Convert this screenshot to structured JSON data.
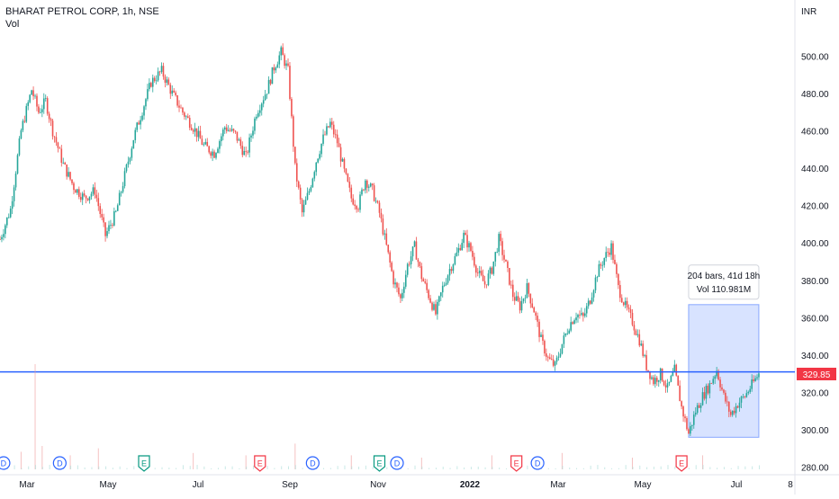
{
  "legend": {
    "symbol_line": "BHARAT PETROL CORP, 1h, NSE",
    "volume_label": "Vol"
  },
  "currency_label": "INR",
  "chart_data": {
    "type": "line",
    "title": "BHARAT PETROL CORP, 1h, NSE",
    "xlabel": "",
    "ylabel": "",
    "ylim": [
      275,
      530
    ],
    "y_ticks": [
      500,
      480,
      460,
      440,
      420,
      400,
      380,
      360,
      340,
      320,
      300,
      280
    ],
    "y_tick_labels": [
      "500.00",
      "480.00",
      "460.00",
      "440.00",
      "420.00",
      "400.00",
      "380.00",
      "360.00",
      "340.00",
      "320.00",
      "300.00",
      "280.00"
    ],
    "x_tick_labels": [
      "Mar",
      "May",
      "Jul",
      "Sep",
      "Nov",
      "2022",
      "Mar",
      "May",
      "Jul",
      "8"
    ],
    "price_path": [
      {
        "t": 0,
        "v": 402
      },
      {
        "t": 3,
        "v": 418
      },
      {
        "t": 6,
        "v": 460
      },
      {
        "t": 9,
        "v": 482
      },
      {
        "t": 11,
        "v": 470
      },
      {
        "t": 13,
        "v": 476
      },
      {
        "t": 15,
        "v": 460
      },
      {
        "t": 18,
        "v": 442
      },
      {
        "t": 21,
        "v": 430
      },
      {
        "t": 24,
        "v": 424
      },
      {
        "t": 27,
        "v": 428
      },
      {
        "t": 30,
        "v": 404
      },
      {
        "t": 33,
        "v": 416
      },
      {
        "t": 36,
        "v": 440
      },
      {
        "t": 38,
        "v": 456
      },
      {
        "t": 41,
        "v": 474
      },
      {
        "t": 43,
        "v": 486
      },
      {
        "t": 46,
        "v": 492
      },
      {
        "t": 49,
        "v": 480
      },
      {
        "t": 52,
        "v": 470
      },
      {
        "t": 55,
        "v": 462
      },
      {
        "t": 58,
        "v": 452
      },
      {
        "t": 61,
        "v": 448
      },
      {
        "t": 64,
        "v": 462
      },
      {
        "t": 67,
        "v": 458
      },
      {
        "t": 70,
        "v": 446
      },
      {
        "t": 73,
        "v": 470
      },
      {
        "t": 76,
        "v": 482
      },
      {
        "t": 78,
        "v": 494
      },
      {
        "t": 80,
        "v": 502
      },
      {
        "t": 82,
        "v": 492
      },
      {
        "t": 84,
        "v": 440
      },
      {
        "t": 86,
        "v": 416
      },
      {
        "t": 88,
        "v": 428
      },
      {
        "t": 90,
        "v": 444
      },
      {
        "t": 92,
        "v": 456
      },
      {
        "t": 94,
        "v": 464
      },
      {
        "t": 96,
        "v": 454
      },
      {
        "t": 98,
        "v": 438
      },
      {
        "t": 100,
        "v": 424
      },
      {
        "t": 102,
        "v": 420
      },
      {
        "t": 104,
        "v": 434
      },
      {
        "t": 106,
        "v": 428
      },
      {
        "t": 108,
        "v": 416
      },
      {
        "t": 110,
        "v": 398
      },
      {
        "t": 112,
        "v": 380
      },
      {
        "t": 114,
        "v": 370
      },
      {
        "t": 116,
        "v": 388
      },
      {
        "t": 118,
        "v": 398
      },
      {
        "t": 120,
        "v": 382
      },
      {
        "t": 122,
        "v": 372
      },
      {
        "t": 124,
        "v": 362
      },
      {
        "t": 126,
        "v": 376
      },
      {
        "t": 128,
        "v": 386
      },
      {
        "t": 130,
        "v": 394
      },
      {
        "t": 132,
        "v": 404
      },
      {
        "t": 134,
        "v": 396
      },
      {
        "t": 136,
        "v": 384
      },
      {
        "t": 138,
        "v": 378
      },
      {
        "t": 140,
        "v": 386
      },
      {
        "t": 142,
        "v": 402
      },
      {
        "t": 144,
        "v": 388
      },
      {
        "t": 146,
        "v": 372
      },
      {
        "t": 148,
        "v": 366
      },
      {
        "t": 150,
        "v": 376
      },
      {
        "t": 152,
        "v": 364
      },
      {
        "t": 154,
        "v": 348
      },
      {
        "t": 156,
        "v": 338
      },
      {
        "t": 158,
        "v": 334
      },
      {
        "t": 160,
        "v": 346
      },
      {
        "t": 162,
        "v": 356
      },
      {
        "t": 164,
        "v": 362
      },
      {
        "t": 166,
        "v": 360
      },
      {
        "t": 168,
        "v": 370
      },
      {
        "t": 170,
        "v": 384
      },
      {
        "t": 172,
        "v": 392
      },
      {
        "t": 174,
        "v": 398
      },
      {
        "t": 176,
        "v": 376
      },
      {
        "t": 178,
        "v": 366
      },
      {
        "t": 180,
        "v": 358
      },
      {
        "t": 182,
        "v": 348
      },
      {
        "t": 184,
        "v": 334
      },
      {
        "t": 186,
        "v": 326
      },
      {
        "t": 188,
        "v": 330
      },
      {
        "t": 190,
        "v": 322
      },
      {
        "t": 192,
        "v": 332
      },
      {
        "t": 194,
        "v": 312
      },
      {
        "t": 196,
        "v": 298
      },
      {
        "t": 198,
        "v": 310
      },
      {
        "t": 200,
        "v": 318
      },
      {
        "t": 202,
        "v": 324
      },
      {
        "t": 204,
        "v": 332
      },
      {
        "t": 206,
        "v": 318
      },
      {
        "t": 208,
        "v": 308
      },
      {
        "t": 210,
        "v": 314
      },
      {
        "t": 212,
        "v": 318
      },
      {
        "t": 214,
        "v": 324
      },
      {
        "t": 216,
        "v": 330
      }
    ],
    "horizontal_line": {
      "value": 331
    },
    "last_price": {
      "value": 329.85,
      "label": "329.85"
    },
    "measure_box": {
      "t_start": 196,
      "t_end": 216,
      "v_low": 296,
      "v_high": 367,
      "line1": "204 bars, 41d 18h",
      "line2": "Vol 110.981M"
    },
    "events": [
      {
        "t": 1,
        "label": "D",
        "kind": "dividend"
      },
      {
        "t": 17,
        "label": "D",
        "kind": "dividend"
      },
      {
        "t": 41,
        "label": "E",
        "kind": "earnings-positive"
      },
      {
        "t": 74,
        "label": "E",
        "kind": "earnings-negative"
      },
      {
        "t": 89,
        "label": "D",
        "kind": "dividend"
      },
      {
        "t": 108,
        "label": "E",
        "kind": "earnings-positive"
      },
      {
        "t": 113,
        "label": "D",
        "kind": "dividend"
      },
      {
        "t": 147,
        "label": "E",
        "kind": "earnings-negative"
      },
      {
        "t": 153,
        "label": "D",
        "kind": "dividend"
      },
      {
        "t": 194,
        "label": "E",
        "kind": "earnings-negative"
      }
    ],
    "volume_bars": [
      {
        "t": 10,
        "v": 0.9
      },
      {
        "t": 6,
        "v": 0.15
      },
      {
        "t": 12,
        "v": 0.2
      },
      {
        "t": 20,
        "v": 0.12
      },
      {
        "t": 28,
        "v": 0.18
      },
      {
        "t": 40,
        "v": 0.1
      },
      {
        "t": 55,
        "v": 0.14
      },
      {
        "t": 70,
        "v": 0.12
      },
      {
        "t": 84,
        "v": 0.22
      },
      {
        "t": 100,
        "v": 0.12
      },
      {
        "t": 120,
        "v": 0.1
      },
      {
        "t": 140,
        "v": 0.12
      },
      {
        "t": 160,
        "v": 0.14
      },
      {
        "t": 180,
        "v": 0.1
      },
      {
        "t": 200,
        "v": 0.12
      }
    ],
    "colors": {
      "up": "#26a69a",
      "down": "#ef5350",
      "hline": "#2962ff",
      "box_fill": "#2962ff",
      "last_price_bg": "#f23645",
      "dividend": "#2962ff",
      "earnings_positive": "#089981",
      "earnings_negative": "#f23645"
    }
  }
}
